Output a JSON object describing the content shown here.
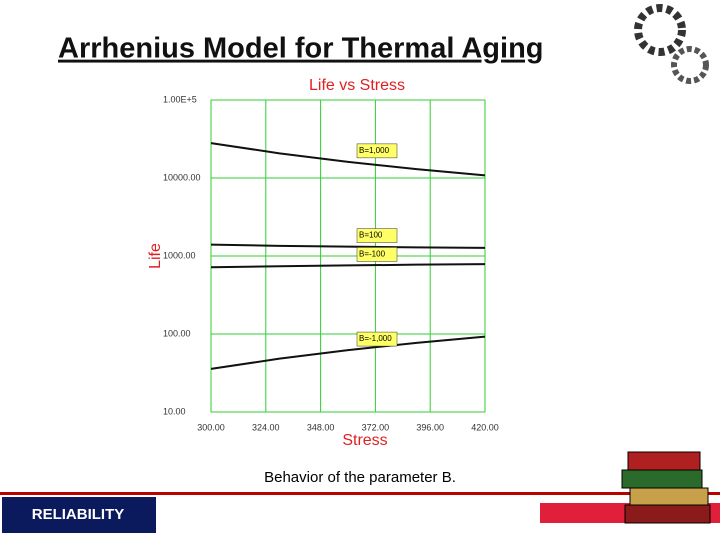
{
  "slide": {
    "title": "Arrhenius Model for Thermal Aging",
    "caption": "Behavior of the parameter B.",
    "footer": "RELIABILITY"
  },
  "chart_data": {
    "type": "line",
    "title": "Life vs Stress",
    "x_label": "Stress",
    "y_label": "Life",
    "x": [
      300,
      330,
      360,
      390,
      420
    ],
    "series": [
      {
        "name": "B=1,000",
        "color": "#111111",
        "values": [
          28000,
          20700,
          16100,
          13000,
          10800
        ]
      },
      {
        "name": "B=100",
        "color": "#111111",
        "values": [
          1400,
          1350,
          1320,
          1290,
          1270
        ]
      },
      {
        "name": "B=-100",
        "color": "#111111",
        "values": [
          717,
          739,
          757,
          774,
          788
        ]
      },
      {
        "name": "B=-1,000",
        "color": "#111111",
        "values": [
          35.7,
          48.3,
          62.2,
          77,
          92.5
        ]
      }
    ],
    "xlim": [
      300,
      420
    ],
    "xticks": [
      {
        "value": 300,
        "label": "300.00"
      },
      {
        "value": 324,
        "label": "324.00"
      },
      {
        "value": 348,
        "label": "348.00"
      },
      {
        "value": 372,
        "label": "372.00"
      },
      {
        "value": 396,
        "label": "396.00"
      },
      {
        "value": 420,
        "label": "420.00"
      }
    ],
    "ylim": [
      10,
      100000
    ],
    "ylog": true,
    "yticks": [
      {
        "value": 10,
        "label": "10.00"
      },
      {
        "value": 100,
        "label": "100.00"
      },
      {
        "value": 1000,
        "label": "1000.00"
      },
      {
        "value": 10000,
        "label": "10000.00"
      },
      {
        "value": 100000,
        "label": "1.00E+5"
      }
    ],
    "grid": true,
    "grid_color": "#33cc33",
    "label_background": "#ffff66",
    "title_color": "#e02020"
  }
}
